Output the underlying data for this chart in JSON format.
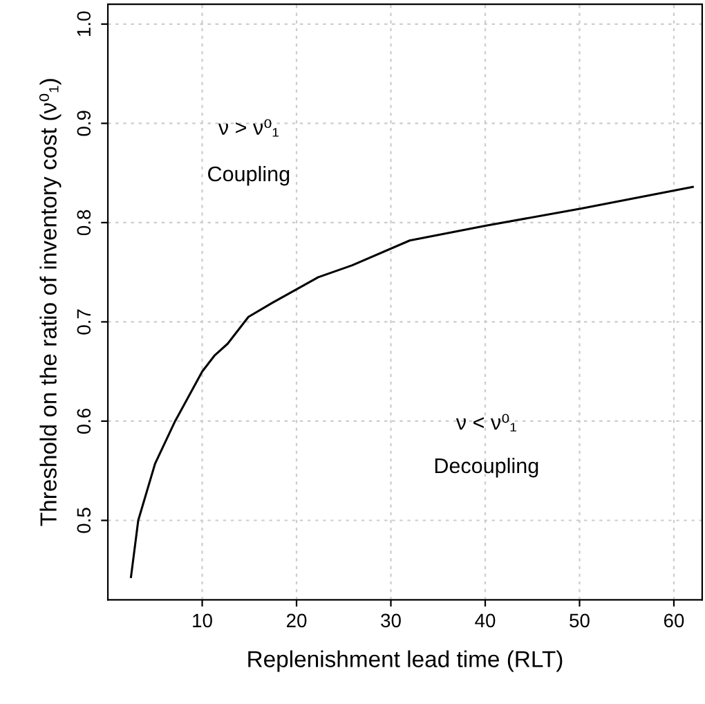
{
  "chart_data": {
    "type": "line",
    "xlabel": "Replenishment lead time (RLT)",
    "ylabel": "Threshold on the ratio of inventory cost (ν⁰₁)",
    "x": [
      2.45,
      3.22,
      5.0,
      7.13,
      10,
      11.3,
      12.7,
      14.9,
      17.4,
      22.3,
      25.9,
      32.0,
      40.1,
      50.1,
      62.0
    ],
    "series": [
      {
        "color": "#000000",
        "values": [
          0.443,
          0.5,
          0.557,
          0.6,
          0.65,
          0.666,
          0.678,
          0.705,
          0.719,
          0.745,
          0.757,
          0.782,
          0.797,
          0.814,
          0.836
        ]
      }
    ],
    "xlim": [
      0,
      63
    ],
    "ylim": [
      0.42,
      1.02
    ],
    "xticks": [
      10,
      20,
      30,
      40,
      50,
      60
    ],
    "yticks": [
      0.5,
      0.6,
      0.7,
      0.8,
      0.9,
      {
        "value": 1.0,
        "label": "1.0"
      }
    ],
    "grid": true,
    "marker": "none",
    "line_style": "solid",
    "annotations": [
      "ν > ν⁰₁",
      "Coupling",
      "ν < ν⁰₁",
      "Decoupling"
    ]
  }
}
